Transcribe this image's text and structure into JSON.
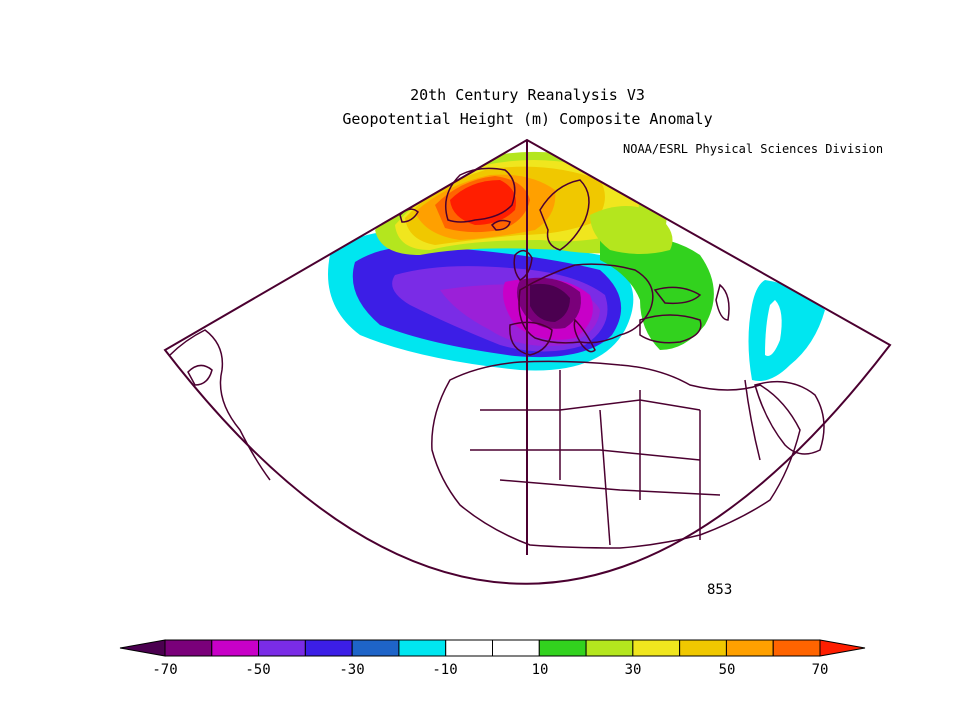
{
  "title": "20th Century Reanalysis V3",
  "subtitle": "Geopotential Height (m) Composite Anomaly",
  "credit": "NOAA/ESRL Physical Sciences Division",
  "label_id": "853",
  "colorbar": {
    "colors": [
      "#4b0050",
      "#7a007a",
      "#c800c8",
      "#7a2ce6",
      "#3c1ee6",
      "#1e64c8",
      "#00e6f0",
      "#ffffff",
      "#ffffff",
      "#32d21e",
      "#b4e61e",
      "#f0e61e",
      "#f0c800",
      "#ffa000",
      "#ff6400",
      "#ff1e00"
    ],
    "tick_labels": [
      "-70",
      "-50",
      "-30",
      "-10",
      "10",
      "30",
      "50",
      "70"
    ]
  },
  "map": {
    "projection": "conic",
    "region": "North Atlantic, Europe, North Africa",
    "anomaly_features": [
      {
        "name": "positive-anomaly-greenland",
        "sign": "positive",
        "max_m": 70
      },
      {
        "name": "negative-anomaly-europe",
        "sign": "negative",
        "min_m": -70
      },
      {
        "name": "positive-anomaly-eastern-europe",
        "sign": "positive",
        "max_m": 20
      },
      {
        "name": "negative-anomaly-middle-east",
        "sign": "negative",
        "min_m": -20
      }
    ]
  }
}
